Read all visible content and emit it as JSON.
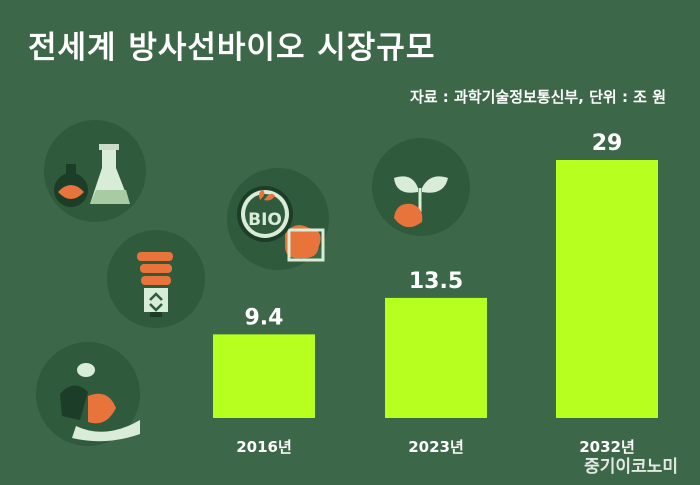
{
  "title": "전세계 방사선바이오 시장규모",
  "source": "자료 : 과학기술정보통신부, 단위 : 조 원",
  "watermark": "중기이코노미",
  "colors": {
    "background": "#3c6748",
    "bar": "#b7ff1f",
    "circle": "#2f5a3c",
    "text": "#ffffff"
  },
  "icons": [
    {
      "name": "chemistry-flask-icon"
    },
    {
      "name": "eco-lightbulb-icon"
    },
    {
      "name": "leaf-hand-icon"
    },
    {
      "name": "bio-badge-icon",
      "label": "BIO"
    },
    {
      "name": "sprout-hand-icon"
    }
  ],
  "chart_data": {
    "type": "bar",
    "categories": [
      "2016년",
      "2023년",
      "2032년"
    ],
    "values": [
      9.4,
      13.5,
      29
    ],
    "value_labels": [
      "9.4",
      "13.5",
      "29"
    ],
    "title": "전세계 방사선바이오 시장규모",
    "ylabel": "",
    "xlabel": "",
    "ylim": [
      0,
      29
    ],
    "grid": false,
    "legend": "none"
  }
}
